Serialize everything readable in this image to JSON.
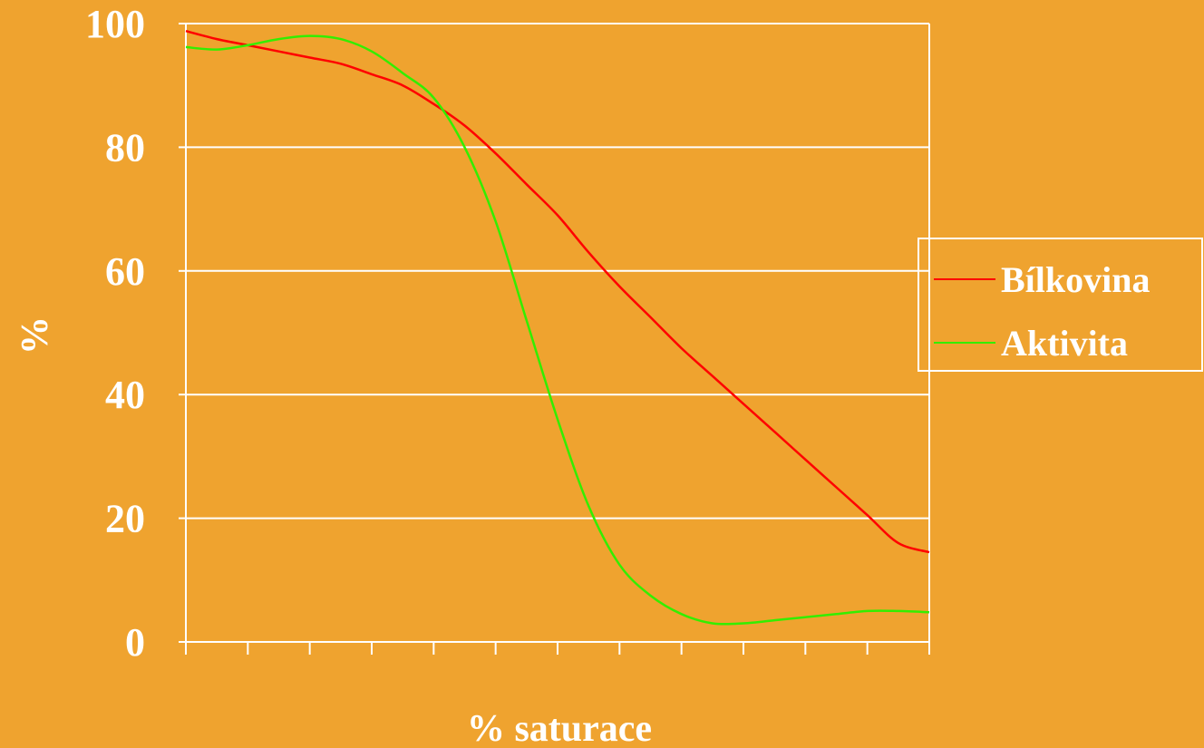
{
  "colors": {
    "background": "#EFA32F",
    "axis": "#FFFFFF",
    "grid": "#FFFFFF",
    "text": "#FFFFFF"
  },
  "chart_data": {
    "type": "line",
    "xlabel": "% saturace",
    "ylabel": "%",
    "ylim": [
      0,
      100
    ],
    "yticks": [
      0,
      20,
      40,
      60,
      80,
      100
    ],
    "x_tick_count": 12,
    "x": [
      0,
      0.5,
      1,
      1.5,
      2,
      2.5,
      3,
      3.5,
      4,
      4.5,
      5,
      5.5,
      6,
      6.5,
      7,
      7.5,
      8,
      8.5,
      9,
      9.5,
      10,
      10.5,
      11,
      11.5,
      12
    ],
    "grid": "horizontal",
    "legend_position": "right",
    "series": [
      {
        "name": "Bílkovina",
        "color": "#FF0000",
        "values": [
          98.8,
          97.5,
          96.5,
          95.5,
          94.5,
          93.5,
          91.8,
          90.0,
          87.0,
          83.5,
          79.0,
          74.0,
          69.0,
          63.0,
          57.5,
          52.5,
          47.5,
          43.0,
          38.5,
          34.0,
          29.5,
          25.0,
          20.5,
          16.0,
          14.5
        ]
      },
      {
        "name": "Aktivita",
        "color": "#33EE00",
        "values": [
          96.2,
          95.8,
          96.5,
          97.5,
          98.0,
          97.5,
          95.5,
          92.0,
          88.0,
          80.0,
          68.0,
          52.0,
          36.0,
          22.0,
          12.5,
          7.5,
          4.5,
          3.0,
          3.0,
          3.5,
          4.0,
          4.5,
          5.0,
          5.0,
          4.8
        ]
      }
    ]
  }
}
